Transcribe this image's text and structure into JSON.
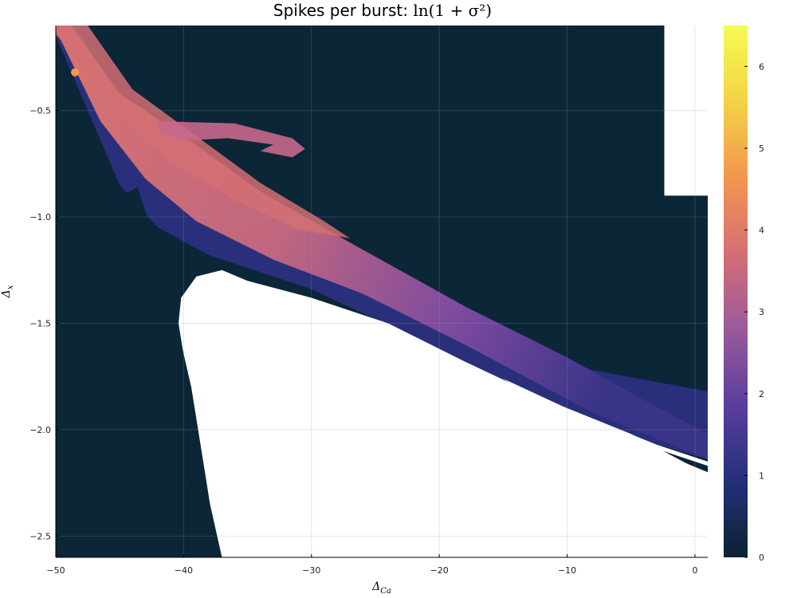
{
  "chart_data": {
    "type": "heatmap",
    "title": "Spikes per burst: ln(1 + σ²)",
    "title_prefix": "Spikes per burst: ",
    "title_math": "ln(1 + σ²)",
    "xlabel": "Δ",
    "xlabel_sub": "Ca",
    "ylabel": "Δ",
    "ylabel_sub": "x",
    "xlim": [
      -50,
      1
    ],
    "ylim": [
      -2.6,
      -0.1
    ],
    "x_ticks": [
      -50,
      -40,
      -30,
      -20,
      -10,
      0
    ],
    "x_tick_labels": [
      "−50",
      "−40",
      "−30",
      "−20",
      "−10",
      "0"
    ],
    "y_ticks": [
      -0.5,
      -1.0,
      -1.5,
      -2.0,
      -2.5
    ],
    "y_tick_labels": [
      "−0.5",
      "−1.0",
      "−1.5",
      "−2.0",
      "−2.5"
    ],
    "grid": true,
    "colorbar": {
      "range": [
        0,
        6.5
      ],
      "ticks": [
        0,
        1,
        2,
        3,
        4,
        5,
        6
      ],
      "tick_labels": [
        "0",
        "1",
        "2",
        "3",
        "4",
        "5",
        "6"
      ],
      "colormap": [
        "#0b2233",
        "#23307a",
        "#5a3e9e",
        "#9a5a9b",
        "#d56e75",
        "#f3964f",
        "#f3d346",
        "#f5fb52"
      ]
    },
    "colors": {
      "background_region": "#0b2637",
      "low_band": "#2b2f7e",
      "mid_band": "#7a4a9e",
      "high_band": "#d46f73",
      "peak": "#f59a48"
    }
  }
}
